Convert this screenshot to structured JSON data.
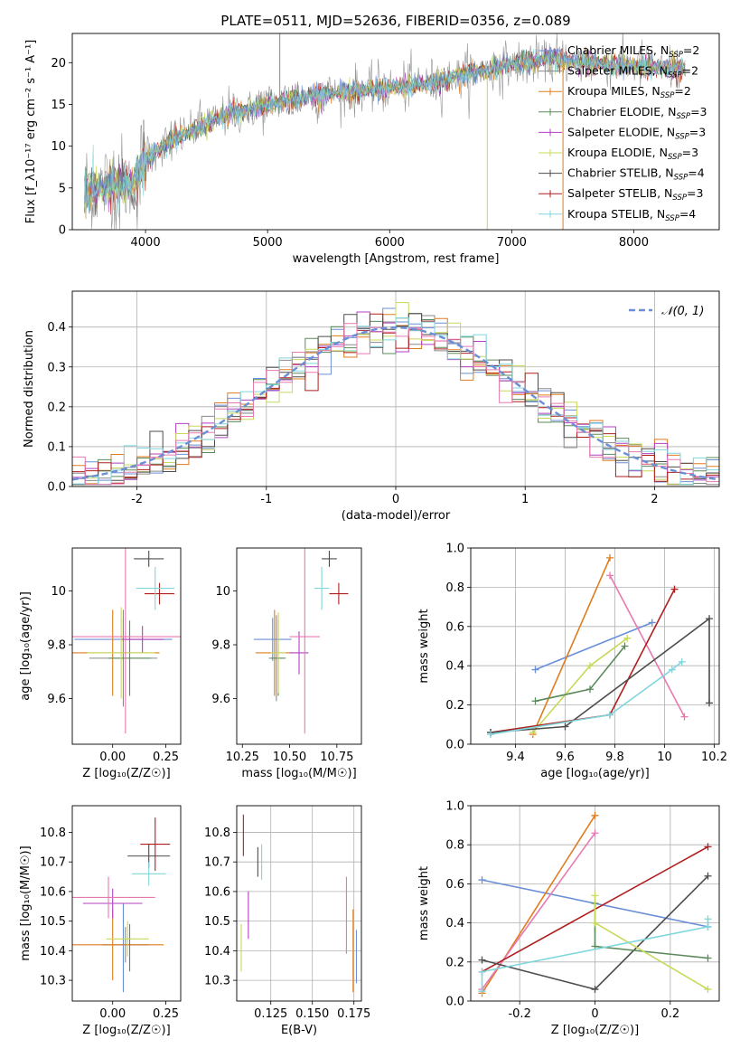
{
  "figure_title": "PLATE=0511, MJD=52636, FIBERID=0356, z=0.089",
  "colors": {
    "chabrier_miles": "#6b8fd6",
    "salpeter_miles": "#8a8a8a",
    "kroupa_miles": "#e07c1e",
    "chabrier_elodie": "#5a8a5a",
    "salpeter_elodie": "#b040c0",
    "kroupa_elodie": "#c8d85a",
    "chabrier_stelib": "#4d4d4d",
    "salpeter_stelib": "#b01e1e",
    "kroupa_stelib": "#7fd6dc",
    "normal_curve": "#6b8fd6",
    "grid": "#b0b0b0"
  },
  "chart_data": [
    {
      "id": "spectrum",
      "type": "line",
      "xlabel": "wavelength [Angstrom, rest frame]",
      "ylabel": "Flux [f_λ10⁻¹⁷ erg cm⁻² s⁻¹ A⁻¹]",
      "xlim": [
        3400,
        8700
      ],
      "ylim": [
        0,
        23.5
      ],
      "xticks": [
        4000,
        5000,
        6000,
        7000,
        8000
      ],
      "yticks": [
        0,
        5,
        10,
        15,
        20
      ],
      "grid": false,
      "legend_position": "top-right",
      "legend": [
        {
          "label": "Chabrier MILES, N_SSP=2",
          "color_key": "chabrier_miles"
        },
        {
          "label": "Salpeter MILES, N_SSP=2",
          "color_key": "salpeter_miles"
        },
        {
          "label": "Kroupa MILES, N_SSP=2",
          "color_key": "kroupa_miles"
        },
        {
          "label": "Chabrier ELODIE, N_SSP=3",
          "color_key": "chabrier_elodie"
        },
        {
          "label": "Salpeter ELODIE, N_SSP=3",
          "color_key": "salpeter_elodie"
        },
        {
          "label": "Kroupa ELODIE, N_SSP=3",
          "color_key": "kroupa_elodie"
        },
        {
          "label": "Chabrier STELIB, N_SSP=4",
          "color_key": "chabrier_stelib"
        },
        {
          "label": "Salpeter STELIB, N_SSP=3",
          "color_key": "salpeter_stelib"
        },
        {
          "label": "Kroupa STELIB, N_SSP=4",
          "color_key": "kroupa_stelib"
        }
      ],
      "continuum": [
        [
          3500,
          4.2
        ],
        [
          3700,
          5.5
        ],
        [
          3900,
          5.2
        ],
        [
          4000,
          8.5
        ],
        [
          4200,
          10.5
        ],
        [
          4400,
          12.0
        ],
        [
          4700,
          14.0
        ],
        [
          5000,
          15.0
        ],
        [
          5300,
          15.8
        ],
        [
          5600,
          16.5
        ],
        [
          6000,
          17.0
        ],
        [
          6300,
          17.5
        ],
        [
          6600,
          18.5
        ],
        [
          7000,
          19.8
        ],
        [
          7300,
          20.5
        ],
        [
          7600,
          20.0
        ],
        [
          8000,
          19.6
        ],
        [
          8400,
          19.2
        ]
      ],
      "spikes": [
        [
          3930,
          1.5
        ],
        [
          5100,
          23.5
        ],
        [
          6800,
          0
        ],
        [
          7420,
          0
        ]
      ]
    },
    {
      "id": "residual_histogram",
      "type": "line",
      "xlabel": "(data-model)/error",
      "ylabel": "Normed distribution",
      "xlim": [
        -2.5,
        2.5
      ],
      "ylim": [
        0,
        0.49
      ],
      "xticks": [
        -2,
        -1,
        0,
        1,
        2
      ],
      "yticks": [
        0.0,
        0.1,
        0.2,
        0.3,
        0.4
      ],
      "grid": true,
      "legend_position": "top-right",
      "legend": [
        {
          "label": "𝒩(0, 1)",
          "color_key": "normal_curve"
        }
      ],
      "bin_width": 0.1
    },
    {
      "id": "age_vs_Z",
      "type": "scatter",
      "xlabel": "Z [log₁₀(Z/Z☉)]",
      "ylabel": "age  [log₁₀(age/yr)]",
      "xlim": [
        -0.19,
        0.32
      ],
      "ylim": [
        9.43,
        10.16
      ],
      "xticks": [
        0.0,
        0.25
      ],
      "xtick_labels": [
        "0.00",
        "0.25"
      ],
      "yticks": [
        9.6,
        9.8,
        10.0
      ],
      "grid": false,
      "points": [
        {
          "key": "chabrier_miles",
          "x": 0.05,
          "xerr": 0.23,
          "y": 9.82,
          "yerr": 0.08
        },
        {
          "key": "salpeter_miles",
          "x": 0.05,
          "xerr": 0.16,
          "y": 9.75,
          "yerr": 0.18
        },
        {
          "key": "kroupa_miles",
          "x": 0.0,
          "xerr": 0.22,
          "y": 9.77,
          "yerr": 0.16
        },
        {
          "key": "chabrier_elodie",
          "x": 0.08,
          "xerr": 0.1,
          "y": 9.75,
          "yerr": 0.14
        },
        {
          "key": "salpeter_elodie",
          "x": 0.14,
          "xerr": 0.1,
          "y": 9.82,
          "yerr": 0.05
        },
        {
          "key": "kroupa_elodie",
          "x": 0.04,
          "xerr": 0.16,
          "y": 9.77,
          "yerr": 0.17
        },
        {
          "key": "chabrier_stelib",
          "x": 0.17,
          "xerr": 0.07,
          "y": 10.12,
          "yerr": 0.03
        },
        {
          "key": "salpeter_stelib",
          "x": 0.22,
          "xerr": 0.07,
          "y": 9.99,
          "yerr": 0.04
        },
        {
          "key": "kroupa_stelib",
          "x": 0.2,
          "xerr": 0.09,
          "y": 10.01,
          "yerr": 0.08
        },
        {
          "key": "kroupa_stelib_pink",
          "x": 0.06,
          "xerr": 0.27,
          "y": 9.83,
          "yerr": 0.36
        }
      ]
    },
    {
      "id": "age_vs_mass",
      "type": "scatter",
      "xlabel": "mass [log₁₀(M/M☉)]",
      "ylabel": "",
      "xlim": [
        10.22,
        10.88
      ],
      "ylim": [
        9.43,
        10.16
      ],
      "xticks": [
        10.25,
        10.5,
        10.75
      ],
      "xtick_labels": [
        "10.25",
        "10.50",
        "10.75"
      ],
      "yticks": [
        9.6,
        9.8,
        10.0
      ],
      "grid": false,
      "points": [
        {
          "key": "chabrier_miles",
          "x": 10.41,
          "xerr": 0.1,
          "y": 9.82,
          "yerr": 0.08
        },
        {
          "key": "salpeter_miles",
          "x": 10.43,
          "xerr": 0.04,
          "y": 9.75,
          "yerr": 0.16
        },
        {
          "key": "kroupa_miles",
          "x": 10.42,
          "xerr": 0.1,
          "y": 9.77,
          "yerr": 0.16
        },
        {
          "key": "chabrier_elodie",
          "x": 10.44,
          "xerr": 0.04,
          "y": 9.75,
          "yerr": 0.14
        },
        {
          "key": "salpeter_elodie",
          "x": 10.55,
          "xerr": 0.05,
          "y": 9.77,
          "yerr": 0.08
        },
        {
          "key": "kroupa_elodie",
          "x": 10.44,
          "xerr": 0.04,
          "y": 9.77,
          "yerr": 0.15
        },
        {
          "key": "chabrier_stelib",
          "x": 10.71,
          "xerr": 0.04,
          "y": 10.12,
          "yerr": 0.03
        },
        {
          "key": "salpeter_stelib",
          "x": 10.76,
          "xerr": 0.05,
          "y": 9.99,
          "yerr": 0.04
        },
        {
          "key": "kroupa_stelib",
          "x": 10.67,
          "xerr": 0.04,
          "y": 10.01,
          "yerr": 0.08
        },
        {
          "key": "kroupa_stelib_pink",
          "x": 10.58,
          "xerr": 0.08,
          "y": 9.83,
          "yerr": 0.36
        }
      ]
    },
    {
      "id": "mass_weight_vs_age",
      "type": "line",
      "xlabel": "age  [log₁₀(age/yr)]",
      "ylabel": "mass weight",
      "xlim": [
        9.22,
        10.22
      ],
      "ylim": [
        0.0,
        1.0
      ],
      "xticks": [
        9.4,
        9.6,
        9.8,
        10.0,
        10.2
      ],
      "yticks": [
        0.0,
        0.2,
        0.4,
        0.6,
        0.8,
        1.0
      ],
      "grid": true,
      "series": [
        {
          "key": "chabrier_miles",
          "x": [
            9.48,
            9.95
          ],
          "y": [
            0.38,
            0.62
          ]
        },
        {
          "key": "kroupa_miles",
          "x": [
            9.47,
            9.78
          ],
          "y": [
            0.05,
            0.95
          ]
        },
        {
          "key": "kroupa_stelib_pink",
          "x": [
            9.78,
            10.08
          ],
          "y": [
            0.86,
            0.14
          ]
        },
        {
          "key": "kroupa_elodie",
          "x": [
            9.47,
            9.7,
            9.85
          ],
          "y": [
            0.06,
            0.4,
            0.54
          ]
        },
        {
          "key": "chabrier_elodie",
          "x": [
            9.48,
            9.7,
            9.84
          ],
          "y": [
            0.22,
            0.28,
            0.5
          ]
        },
        {
          "key": "salpeter_stelib",
          "x": [
            9.3,
            9.78,
            10.04
          ],
          "y": [
            0.06,
            0.15,
            0.79
          ]
        },
        {
          "key": "chabrier_stelib",
          "x": [
            9.3,
            9.6,
            10.18,
            10.18
          ],
          "y": [
            0.06,
            0.09,
            0.64,
            0.21
          ]
        },
        {
          "key": "kroupa_stelib",
          "x": [
            9.3,
            9.78,
            10.03,
            10.07
          ],
          "y": [
            0.05,
            0.15,
            0.38,
            0.42
          ]
        }
      ]
    },
    {
      "id": "mass_vs_Z",
      "type": "scatter",
      "xlabel": "Z [log₁₀(Z/Z☉)]",
      "ylabel": "mass [log₁₀(M/M☉)]",
      "xlim": [
        -0.19,
        0.32
      ],
      "ylim": [
        10.23,
        10.89
      ],
      "xticks": [
        0.0,
        0.25
      ],
      "xtick_labels": [
        "0.00",
        "0.25"
      ],
      "yticks": [
        10.3,
        10.4,
        10.5,
        10.6,
        10.7,
        10.8
      ],
      "grid": false,
      "points": [
        {
          "key": "chabrier_miles",
          "x": 0.05,
          "xerr": 0.0,
          "y": 10.41,
          "yerr": 0.15
        },
        {
          "key": "salpeter_miles",
          "x": 0.06,
          "xerr": 0.11,
          "y": 10.42,
          "yerr": 0.06
        },
        {
          "key": "kroupa_miles",
          "x": 0.0,
          "xerr": 0.24,
          "y": 10.42,
          "yerr": 0.12
        },
        {
          "key": "chabrier_elodie",
          "x": 0.08,
          "xerr": 0.0,
          "y": 10.41,
          "yerr": 0.08
        },
        {
          "key": "salpeter_elodie",
          "x": 0.0,
          "xerr": 0.14,
          "y": 10.56,
          "yerr": 0.05
        },
        {
          "key": "kroupa_elodie",
          "x": 0.07,
          "xerr": 0.1,
          "y": 10.44,
          "yerr": 0.06
        },
        {
          "key": "chabrier_stelib",
          "x": 0.17,
          "xerr": 0.1,
          "y": 10.72,
          "yerr": 0.04
        },
        {
          "key": "salpeter_stelib",
          "x": 0.2,
          "xerr": 0.07,
          "y": 10.76,
          "yerr": 0.09
        },
        {
          "key": "kroupa_stelib",
          "x": 0.17,
          "xerr": 0.08,
          "y": 10.66,
          "yerr": 0.04
        },
        {
          "key": "kroupa_stelib_pink",
          "x": -0.02,
          "xerr": 0.22,
          "y": 10.58,
          "yerr": 0.07
        }
      ]
    },
    {
      "id": "mass_vs_ebv",
      "type": "scatter",
      "xlabel": "E(B-V)",
      "ylabel": "",
      "xlim": [
        0.1045,
        0.1795
      ],
      "ylim": [
        10.23,
        10.89
      ],
      "xticks": [
        0.125,
        0.15,
        0.175
      ],
      "xtick_labels": [
        "0.125",
        "0.150",
        "0.175"
      ],
      "yticks": [
        10.3,
        10.4,
        10.5,
        10.6,
        10.7,
        10.8
      ],
      "grid": true,
      "points": [
        {
          "key": "chabrier_miles",
          "x": 0.1765,
          "xerr": 0,
          "y": 10.38,
          "yerr": 0.09
        },
        {
          "key": "kroupa_miles",
          "x": 0.1745,
          "xerr": 0,
          "y": 10.4,
          "yerr": 0.14
        },
        {
          "key": "kroupa_elodie",
          "x": 0.1072,
          "xerr": 0,
          "y": 10.41,
          "yerr": 0.08
        },
        {
          "key": "salpeter_stelib",
          "x": 0.1085,
          "xerr": 0,
          "y": 10.79,
          "yerr": 0.07
        },
        {
          "key": "salpeter_elodie",
          "x": 0.1115,
          "xerr": 0,
          "y": 10.52,
          "yerr": 0.08
        },
        {
          "key": "chabrier_stelib",
          "x": 0.1172,
          "xerr": 0,
          "y": 10.7,
          "yerr": 0.05
        },
        {
          "key": "kroupa_stelib",
          "x": 0.1195,
          "xerr": 0,
          "y": 10.7,
          "yerr": 0.06
        },
        {
          "key": "kroupa_stelib_pink",
          "x": 0.1705,
          "xerr": 0,
          "y": 10.52,
          "yerr": 0.13
        }
      ]
    },
    {
      "id": "mass_weight_vs_Z",
      "type": "line",
      "xlabel": "Z [log₁₀(Z/Z☉)]",
      "ylabel": "mass weight",
      "xlim": [
        -0.33,
        0.33
      ],
      "ylim": [
        0.0,
        1.0
      ],
      "xticks": [
        -0.2,
        0.0,
        0.2
      ],
      "yticks": [
        0.0,
        0.2,
        0.4,
        0.6,
        0.8,
        1.0
      ],
      "grid": true,
      "series": [
        {
          "key": "chabrier_miles",
          "x": [
            -0.3,
            0.3
          ],
          "y": [
            0.62,
            0.38
          ]
        },
        {
          "key": "kroupa_miles",
          "x": [
            -0.3,
            0.0
          ],
          "y": [
            0.04,
            0.95
          ]
        },
        {
          "key": "kroupa_stelib_pink",
          "x": [
            -0.3,
            0.0
          ],
          "y": [
            0.06,
            0.86
          ]
        },
        {
          "key": "salpeter_stelib",
          "x": [
            -0.3,
            0.3
          ],
          "y": [
            0.15,
            0.79
          ]
        },
        {
          "key": "chabrier_stelib",
          "x": [
            -0.3,
            0.0,
            0.3
          ],
          "y": [
            0.21,
            0.06,
            0.64
          ]
        },
        {
          "key": "chabrier_elodie",
          "x": [
            0.0,
            0.0,
            0.3
          ],
          "y": [
            0.5,
            0.28,
            0.22
          ]
        },
        {
          "key": "kroupa_elodie",
          "x": [
            0.0,
            0.0,
            0.3
          ],
          "y": [
            0.54,
            0.4,
            0.06
          ]
        },
        {
          "key": "kroupa_stelib",
          "x": [
            -0.3,
            -0.3,
            0.3,
            0.3
          ],
          "y": [
            0.05,
            0.15,
            0.38,
            0.42
          ]
        }
      ]
    }
  ]
}
